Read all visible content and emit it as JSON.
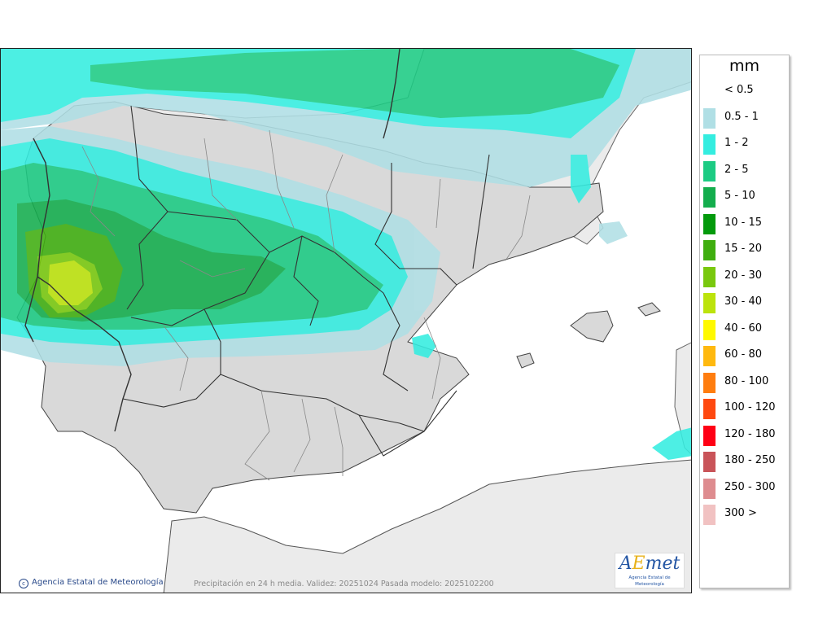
{
  "map": {
    "caption": "Precipitación en 24 h media. Validez: 20251024 Pasada modelo: 2025102200",
    "copyright": "Agencia Estatal de Meteorología",
    "logo": {
      "word_a": "A",
      "word_e": "E",
      "word_rest": "met",
      "subtitle": "Agencia Estatal de Meteorología"
    },
    "colors": {
      "sea": "#ffffff",
      "land": "#d9d9d9",
      "land_outside": "#ebebeb",
      "border": "#333333",
      "province": "#888888"
    }
  },
  "legend": {
    "unit": "mm",
    "items": [
      {
        "label": "< 0.5",
        "color": ""
      },
      {
        "label": "0.5 - 1",
        "color": "#b0dfe5"
      },
      {
        "label": "1 - 2",
        "color": "#34ede0"
      },
      {
        "label": "2 - 5",
        "color": "#1ccb83"
      },
      {
        "label": "5 - 10",
        "color": "#13ad4d"
      },
      {
        "label": "10 - 15",
        "color": "#039a0c"
      },
      {
        "label": "15 - 20",
        "color": "#3fae0f"
      },
      {
        "label": "20 - 30",
        "color": "#79c80e"
      },
      {
        "label": "30 - 40",
        "color": "#bce30c"
      },
      {
        "label": "40 - 60",
        "color": "#fff900"
      },
      {
        "label": "60 - 80",
        "color": "#ffb90f"
      },
      {
        "label": "80 - 100",
        "color": "#ff7d0f"
      },
      {
        "label": "100 - 120",
        "color": "#ff4910"
      },
      {
        "label": "120 - 180",
        "color": "#ff0015"
      },
      {
        "label": "180 - 250",
        "color": "#c95459"
      },
      {
        "label": "250 - 300",
        "color": "#de8c8f"
      },
      {
        "label": "300 >",
        "color": "#f1c2c2"
      }
    ]
  }
}
